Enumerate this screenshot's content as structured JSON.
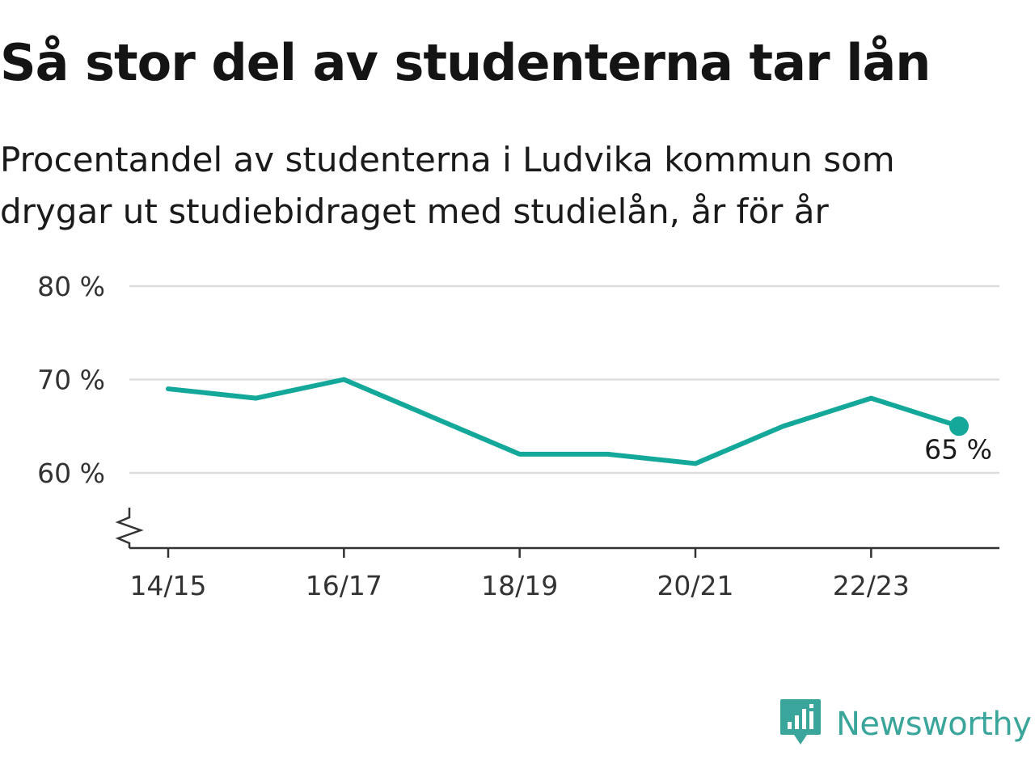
{
  "title": "Så stor del av studenterna tar lån",
  "subtitle_lines": [
    "Procentandel av studenterna i Ludvika kommun som",
    "drygar ut studiebidraget med studielån, år för år"
  ],
  "brand": {
    "name": "Newsworthy",
    "icon": "newsworthy-logo-icon",
    "color": "#3aa59a"
  },
  "colors": {
    "line": "#13a89a",
    "grid": "#dddddd",
    "axis": "#333333"
  },
  "chart_data": {
    "type": "line",
    "x": [
      "14/15",
      "15/16",
      "16/17",
      "17/18",
      "18/19",
      "19/20",
      "20/21",
      "21/22",
      "22/23",
      "23/24"
    ],
    "tick_labels": [
      "14/15",
      "16/17",
      "18/19",
      "20/21",
      "22/23"
    ],
    "series": [
      {
        "values": [
          69,
          68,
          70,
          66,
          62,
          62,
          61,
          65,
          68,
          65
        ]
      }
    ],
    "ylim": [
      52,
      80
    ],
    "yticks": [
      60,
      70,
      80
    ],
    "ytick_labels": [
      "60 %",
      "70 %",
      "80 %"
    ],
    "axis_break": true,
    "grid": true,
    "end_label": "65 %"
  }
}
